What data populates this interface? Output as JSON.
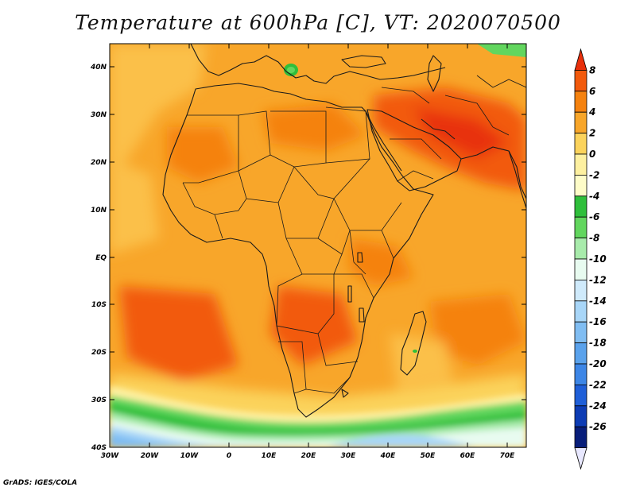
{
  "title": "Temperature at 600hPa [C], VT: 2020070500",
  "credit": "GrADS: IGES/COLA",
  "axes": {
    "lat_labels": [
      "40N",
      "30N",
      "20N",
      "10N",
      "EQ",
      "10S",
      "20S",
      "30S",
      "40S"
    ],
    "lon_labels": [
      "30W",
      "20W",
      "10W",
      "0",
      "10E",
      "20E",
      "30E",
      "40E",
      "50E",
      "60E",
      "70E"
    ]
  },
  "colorbar": {
    "levels": [
      "8",
      "6",
      "4",
      "2",
      "0",
      "-2",
      "-4",
      "-6",
      "-8",
      "-10",
      "-12",
      "-14",
      "-16",
      "-18",
      "-20",
      "-22",
      "-24",
      "-26"
    ],
    "colors": [
      "#e8300c",
      "#f25a0c",
      "#f5820f",
      "#f8a62a",
      "#fbd35c",
      "#fdf0a0",
      "#fefcc8",
      "#2fbf3b",
      "#62d65e",
      "#a8ebab",
      "#e8fbf0",
      "#cfeafb",
      "#a8d6f8",
      "#80bdf2",
      "#5aa2ec",
      "#3d86e6",
      "#1f5fd8",
      "#0d3cb4",
      "#081e7a",
      "#e8e8ff"
    ]
  }
}
